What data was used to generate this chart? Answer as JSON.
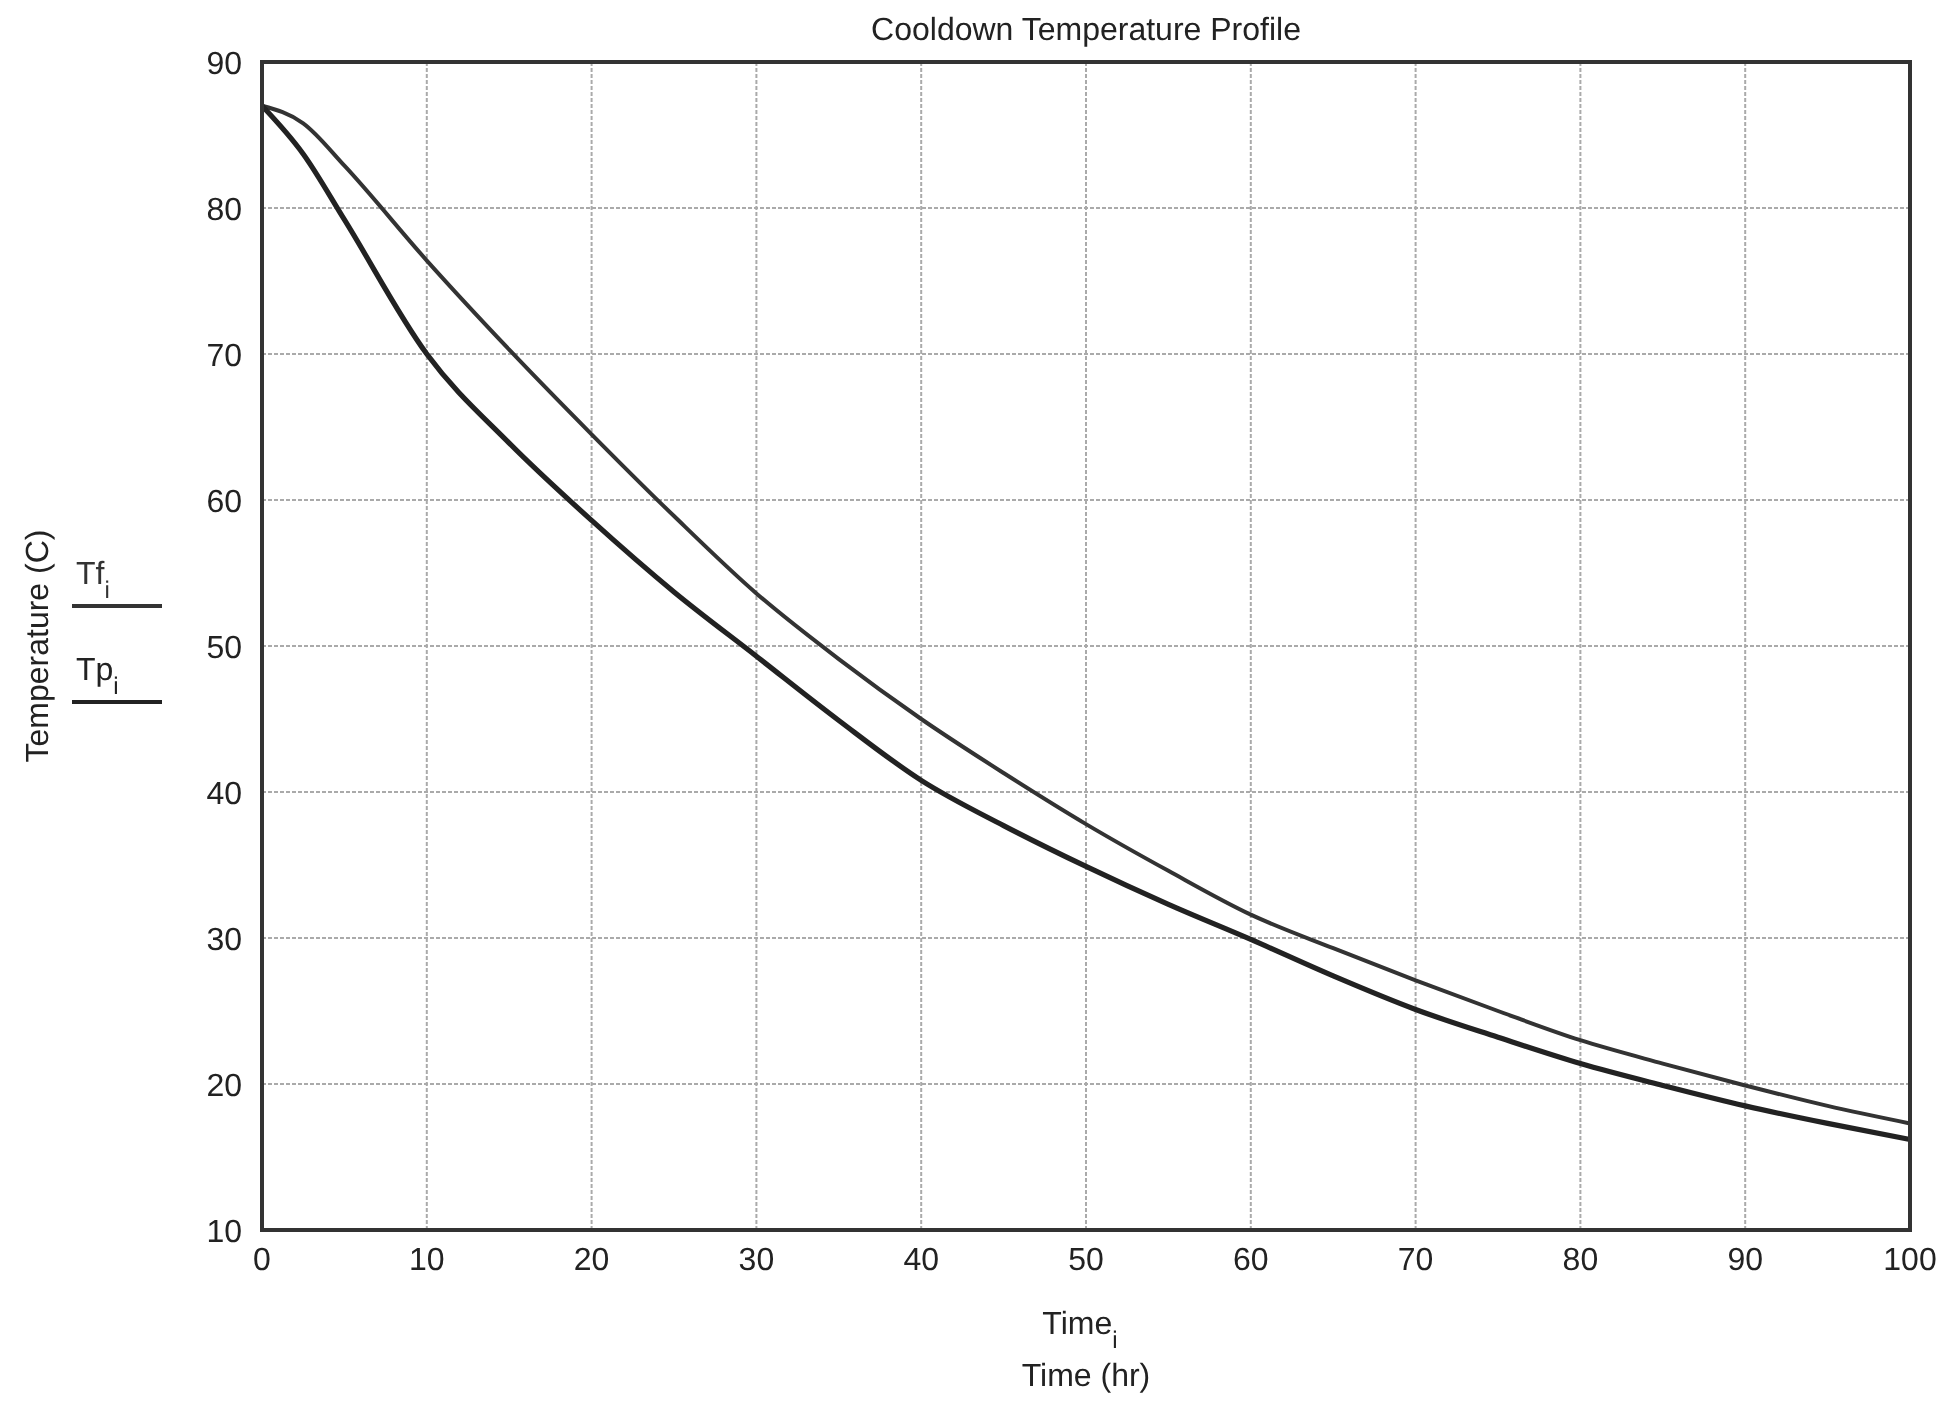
{
  "chart_data": {
    "type": "line",
    "title": "Cooldown Temperature Profile",
    "xlabel": "Time (hr)",
    "ylabel": "Temperature (C)",
    "annotations": [
      "Time$_{i}$"
    ],
    "x": [
      0,
      2.5,
      5,
      10,
      15,
      20,
      25,
      30,
      35,
      40,
      45,
      50,
      55,
      60,
      65,
      70,
      75,
      80,
      85,
      90,
      95,
      100
    ],
    "series": [
      {
        "name": "Tf$_{i}$",
        "color": "#333333",
        "values": [
          87,
          85.8,
          82.9,
          76.4,
          70.3,
          64.5,
          58.9,
          53.6,
          49.1,
          45,
          41.3,
          37.8,
          34.6,
          31.6,
          29.3,
          27.1,
          25,
          23,
          21.4,
          19.9,
          18.5,
          17.3
        ]
      },
      {
        "name": "Tp$_{i}$",
        "color": "#222222",
        "values": [
          87,
          83.7,
          79.2,
          70,
          63.9,
          58.6,
          53.7,
          49.3,
          44.9,
          40.8,
          37.7,
          34.9,
          32.3,
          29.9,
          27.4,
          25.1,
          23.2,
          21.4,
          19.9,
          18.5,
          17.3,
          16.2
        ]
      }
    ],
    "xlim": [
      0,
      100
    ],
    "xticks": [
      0,
      10,
      20,
      30,
      40,
      50,
      60,
      70,
      80,
      90,
      100
    ],
    "ylim": [
      10,
      90
    ],
    "yticks": [
      10,
      20,
      30,
      40,
      50,
      60,
      70,
      80,
      90
    ],
    "grid": true,
    "legend": "left",
    "line_style": "solid",
    "marker": "none"
  }
}
